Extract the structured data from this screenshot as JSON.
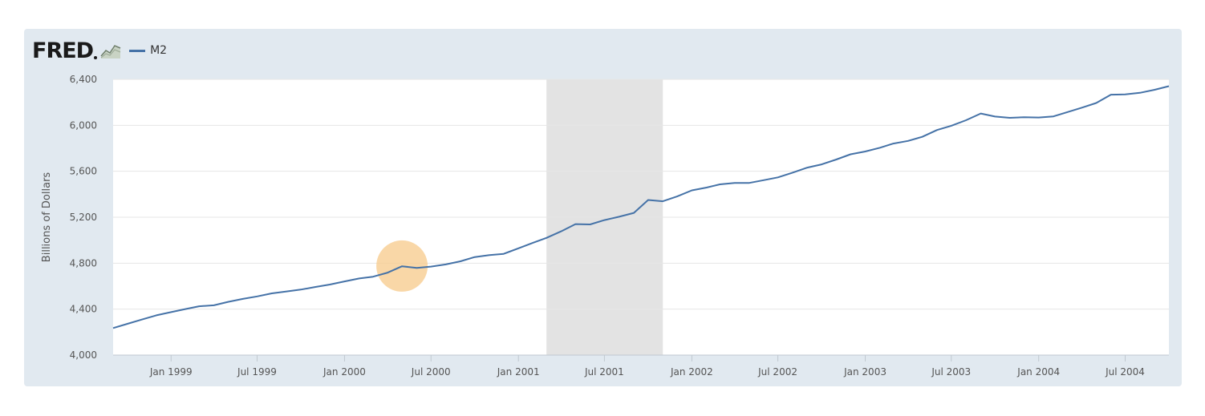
{
  "header": {
    "logo_text": "FRED",
    "logo_icon": "chart-line-icon",
    "legend_label": "M2"
  },
  "colors": {
    "series": "#4572a7",
    "recession": "#e3e3e3",
    "panel": "#e1e9f0",
    "highlight": "#f7c98a"
  },
  "chart_data": {
    "type": "line",
    "title": "",
    "xlabel": "",
    "ylabel": "Billions of Dollars",
    "ylim": [
      4000,
      6400
    ],
    "yticks": [
      4000,
      4400,
      4800,
      5200,
      5600,
      6000,
      6400
    ],
    "ytick_labels": [
      "4,000",
      "4,400",
      "4,800",
      "5,200",
      "5,600",
      "6,000",
      "6,400"
    ],
    "xlim": [
      "1998-09-01",
      "2004-10-01"
    ],
    "xticks": [
      "1999-01-01",
      "1999-07-01",
      "2000-01-01",
      "2000-07-01",
      "2001-01-01",
      "2001-07-01",
      "2002-01-01",
      "2002-07-01",
      "2003-01-01",
      "2003-07-01",
      "2004-01-01",
      "2004-07-01"
    ],
    "xtick_labels": [
      "Jan 1999",
      "Jul 1999",
      "Jan 2000",
      "Jul 2000",
      "Jan 2001",
      "Jul 2001",
      "Jan 2002",
      "Jul 2002",
      "Jan 2003",
      "Jul 2003",
      "Jan 2004",
      "Jul 2004"
    ],
    "recession": [
      "2001-03-01",
      "2001-11-01"
    ],
    "highlight": {
      "x": "2000-05-01",
      "y": 4775
    },
    "series": [
      {
        "name": "M2",
        "x": [
          "1998-09-01",
          "1998-10-01",
          "1998-11-01",
          "1998-12-01",
          "1999-01-01",
          "1999-02-01",
          "1999-03-01",
          "1999-04-01",
          "1999-05-01",
          "1999-06-01",
          "1999-07-01",
          "1999-08-01",
          "1999-09-01",
          "1999-10-01",
          "1999-11-01",
          "1999-12-01",
          "2000-01-01",
          "2000-02-01",
          "2000-03-01",
          "2000-04-01",
          "2000-05-01",
          "2000-06-01",
          "2000-07-01",
          "2000-08-01",
          "2000-09-01",
          "2000-10-01",
          "2000-11-01",
          "2000-12-01",
          "2001-01-01",
          "2001-02-01",
          "2001-03-01",
          "2001-04-01",
          "2001-05-01",
          "2001-06-01",
          "2001-07-01",
          "2001-08-01",
          "2001-09-01",
          "2001-10-01",
          "2001-11-01",
          "2001-12-01",
          "2002-01-01",
          "2002-02-01",
          "2002-03-01",
          "2002-04-01",
          "2002-05-01",
          "2002-06-01",
          "2002-07-01",
          "2002-08-01",
          "2002-09-01",
          "2002-10-01",
          "2002-11-01",
          "2002-12-01",
          "2003-01-01",
          "2003-02-01",
          "2003-03-01",
          "2003-04-01",
          "2003-05-01",
          "2003-06-01",
          "2003-07-01",
          "2003-08-01",
          "2003-09-01",
          "2003-10-01",
          "2003-11-01",
          "2003-12-01",
          "2004-01-01",
          "2004-02-01",
          "2004-03-01",
          "2004-04-01",
          "2004-05-01",
          "2004-06-01",
          "2004-07-01",
          "2004-08-01",
          "2004-09-01",
          "2004-10-01"
        ],
        "y": [
          4235,
          4272,
          4310,
          4346,
          4374,
          4401,
          4425,
          4433,
          4463,
          4489,
          4511,
          4537,
          4554,
          4570,
          4593,
          4614,
          4641,
          4667,
          4682,
          4718,
          4773,
          4759,
          4770,
          4789,
          4816,
          4853,
          4871,
          4881,
          4929,
          4978,
          5020,
          5077,
          5140,
          5137,
          5175,
          5204,
          5238,
          5350,
          5339,
          5381,
          5434,
          5458,
          5486,
          5498,
          5498,
          5522,
          5547,
          5588,
          5632,
          5660,
          5702,
          5748,
          5772,
          5805,
          5841,
          5864,
          5900,
          5959,
          5996,
          6044,
          6103,
          6076,
          6065,
          6071,
          6068,
          6078,
          6115,
          6154,
          6194,
          6267,
          6269,
          6283,
          6309,
          6341
        ]
      }
    ]
  }
}
